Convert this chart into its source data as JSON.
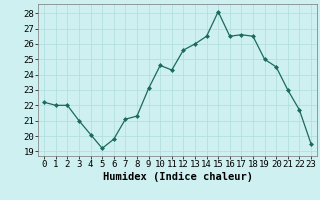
{
  "x": [
    0,
    1,
    2,
    3,
    4,
    5,
    6,
    7,
    8,
    9,
    10,
    11,
    12,
    13,
    14,
    15,
    16,
    17,
    18,
    19,
    20,
    21,
    22,
    23
  ],
  "y": [
    22.2,
    22.0,
    22.0,
    21.0,
    20.1,
    19.2,
    19.8,
    21.1,
    21.3,
    23.1,
    24.6,
    24.3,
    25.6,
    26.0,
    26.5,
    28.1,
    26.5,
    26.6,
    26.5,
    25.0,
    24.5,
    23.0,
    21.7,
    19.5
  ],
  "line_color": "#1a6b5a",
  "marker_color": "#1a6b5a",
  "bg_color": "#cff0f0",
  "grid_color": "#aedddd",
  "xlabel": "Humidex (Indice chaleur)",
  "ylim": [
    18.7,
    28.6
  ],
  "yticks": [
    19,
    20,
    21,
    22,
    23,
    24,
    25,
    26,
    27,
    28
  ],
  "xticks": [
    0,
    1,
    2,
    3,
    4,
    5,
    6,
    7,
    8,
    9,
    10,
    11,
    12,
    13,
    14,
    15,
    16,
    17,
    18,
    19,
    20,
    21,
    22,
    23
  ],
  "xtick_labels": [
    "0",
    "1",
    "2",
    "3",
    "4",
    "5",
    "6",
    "7",
    "8",
    "9",
    "10",
    "11",
    "12",
    "13",
    "14",
    "15",
    "16",
    "17",
    "18",
    "19",
    "20",
    "21",
    "22",
    "23"
  ],
  "font_size": 6.5,
  "xlabel_fontsize": 7.5
}
